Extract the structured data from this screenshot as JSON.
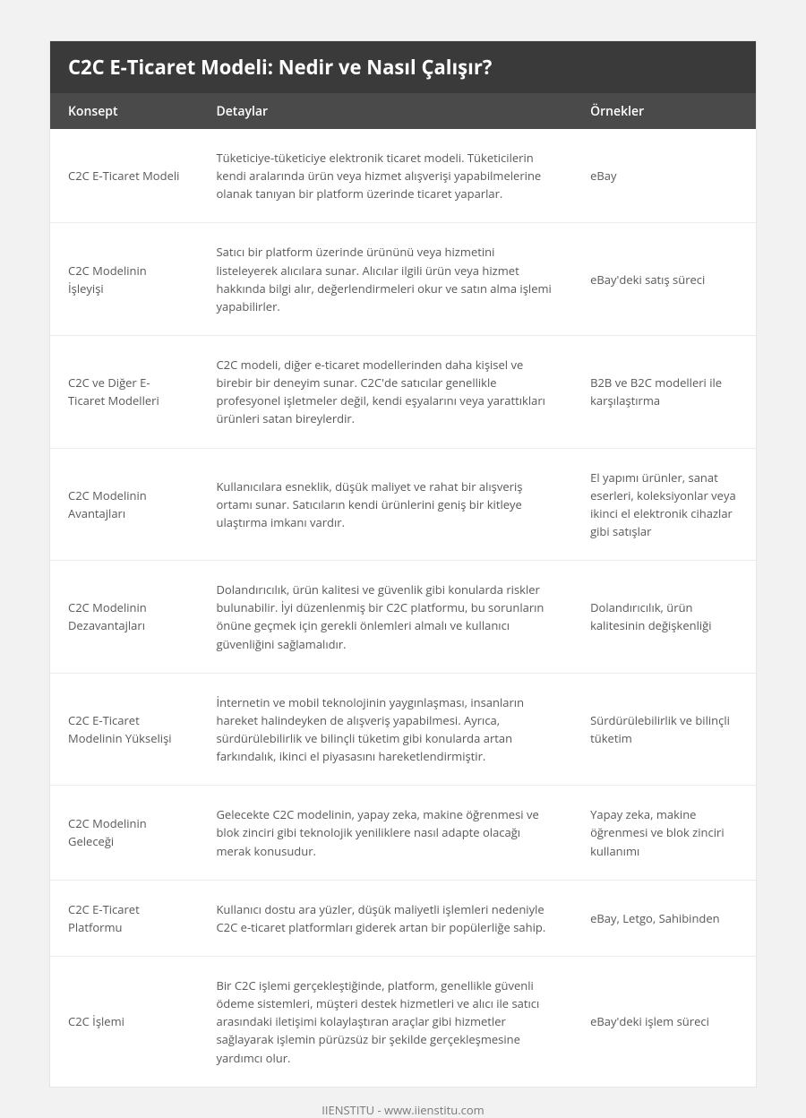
{
  "title": "C2C E-Ticaret Modeli: Nedir ve Nasıl Çalışır?",
  "headers": {
    "concept": "Konsept",
    "details": "Detaylar",
    "examples": "Örnekler"
  },
  "rows": [
    {
      "concept": "C2C E-Ticaret Modeli",
      "details": "Tüketiciye-tüketiciye elektronik ticaret modeli. Tüketicilerin kendi aralarında ürün veya hizmet alışverişi yapabilmelerine olanak tanıyan bir platform üzerinde ticaret yaparlar.",
      "examples": "eBay"
    },
    {
      "concept": "C2C Modelinin İşleyişi",
      "details": "Satıcı bir platform üzerinde ürününü veya hizmetini listeleyerek alıcılara sunar. Alıcılar ilgili ürün veya hizmet hakkında bilgi alır, değerlendirmeleri okur ve satın alma işlemi yapabilirler.",
      "examples": "eBay'deki satış süreci"
    },
    {
      "concept": "C2C ve Diğer E-Ticaret Modelleri",
      "details": "C2C modeli, diğer e-ticaret modellerinden daha kişisel ve birebir bir deneyim sunar. C2C'de satıcılar genellikle profesyonel işletmeler değil, kendi eşyalarını veya yarattıkları ürünleri satan bireylerdir.",
      "examples": "B2B ve B2C modelleri ile karşılaştırma"
    },
    {
      "concept": "C2C Modelinin Avantajları",
      "details": "Kullanıcılara esneklik, düşük maliyet ve rahat bir alışveriş ortamı sunar. Satıcıların kendi ürünlerini geniş bir kitleye ulaştırma imkanı vardır.",
      "examples": "El yapımı ürünler, sanat eserleri, koleksiyonlar veya ikinci el elektronik cihazlar gibi satışlar"
    },
    {
      "concept": "C2C Modelinin Dezavantajları",
      "details": "Dolandırıcılık, ürün kalitesi ve güvenlik gibi konularda riskler bulunabilir. İyi düzenlenmiş bir C2C platformu, bu sorunların önüne geçmek için gerekli önlemleri almalı ve kullanıcı güvenliğini sağlamalıdır.",
      "examples": "Dolandırıcılık, ürün kalitesinin değişkenliği"
    },
    {
      "concept": "C2C E-Ticaret Modelinin Yükselişi",
      "details": "İnternetin ve mobil teknolojinin yaygınlaşması, insanların hareket halindeyken de alışveriş yapabilmesi. Ayrıca, sürdürülebilirlik ve bilinçli tüketim gibi konularda artan farkındalık, ikinci el piyasasını hareketlendirmiştir.",
      "examples": "Sürdürülebilirlik ve bilinçli tüketim"
    },
    {
      "concept": "C2C Modelinin Geleceği",
      "details": "Gelecekte C2C modelinin, yapay zeka, makine öğrenmesi ve blok zinciri gibi teknolojik yeniliklere nasıl adapte olacağı merak konusudur.",
      "examples": "Yapay zeka, makine öğrenmesi ve blok zinciri kullanımı"
    },
    {
      "concept": "C2C E-Ticaret Platformu",
      "details": "Kullanıcı dostu ara yüzler, düşük maliyetli işlemleri nedeniyle C2C e-ticaret platformları giderek artan bir popülerliğe sahip.",
      "examples": "eBay, Letgo, Sahibinden"
    },
    {
      "concept": "C2C İşlemi",
      "details": "Bir C2C işlemi gerçekleştiğinde, platform, genellikle güvenli ödeme sistemleri, müşteri destek hizmetleri ve alıcı ile satıcı arasındaki iletişimi kolaylaştıran araçlar gibi hizmetler sağlayarak işlemin pürüzsüz bir şekilde gerçekleşmesine yardımcı olur.",
      "examples": "eBay'deki işlem süreci"
    }
  ],
  "footer": "IIENSTITU - www.iienstitu.com",
  "style": {
    "page_bg": "#f2f2f2",
    "title_bg": "#3a3a3a",
    "header_bg": "#4a4a4a",
    "header_text": "#ffffff",
    "row_border": "#ececec",
    "body_text": "#595959",
    "footer_text": "#7a7a7a",
    "title_fontsize": 22,
    "header_fontsize": 14,
    "cell_fontsize": 13,
    "col_widths": {
      "concept": "21%",
      "details": "53%",
      "examples": "26%"
    }
  }
}
